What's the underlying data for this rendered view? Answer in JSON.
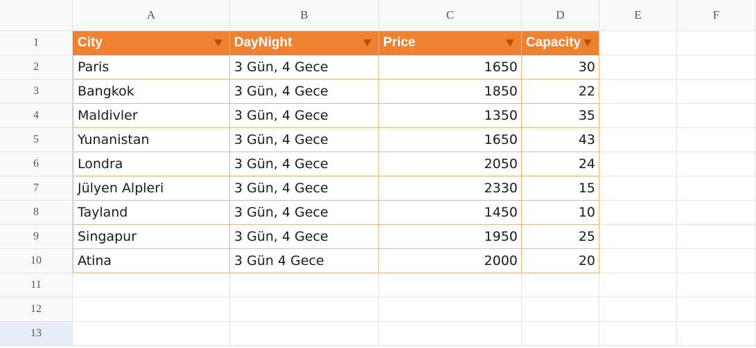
{
  "columns": [
    "A",
    "B",
    "C",
    "D",
    "E",
    "F"
  ],
  "row_numbers": [
    "1",
    "2",
    "3",
    "4",
    "5",
    "6",
    "7",
    "8",
    "9",
    "10",
    "11",
    "12",
    "13"
  ],
  "table": {
    "headers": [
      "City",
      "DayNight",
      "Price",
      "Capacity"
    ],
    "rows": [
      [
        "Paris",
        "3 Gün, 4 Gece",
        "1650",
        "30"
      ],
      [
        "Bangkok",
        "3 Gün, 4 Gece",
        "1850",
        "22"
      ],
      [
        "Maldivler",
        "3 Gün, 4 Gece",
        "1350",
        "35"
      ],
      [
        "Yunanistan",
        "3 Gün, 4 Gece",
        "1650",
        "43"
      ],
      [
        "Londra",
        "3 Gün, 4 Gece",
        "2050",
        "24"
      ],
      [
        "Jülyen Alpleri",
        "3 Gün, 4 Gece",
        "2330",
        "15"
      ],
      [
        "Tayland",
        "3 Gün, 4 Gece",
        "1450",
        "10"
      ],
      [
        "Singapur",
        "3 Gün, 4 Gece",
        "1950",
        "25"
      ],
      [
        "Atina",
        "3 Gün 4 Gece",
        "2000",
        "20"
      ]
    ]
  },
  "colors": {
    "header_fill": "#ef8130",
    "header_text": "#ffffff",
    "table_border": "#f2b07b",
    "selected_row_header": "#e6ecf8"
  },
  "icons": {
    "header_filter": "filter-dropdown-icon"
  }
}
